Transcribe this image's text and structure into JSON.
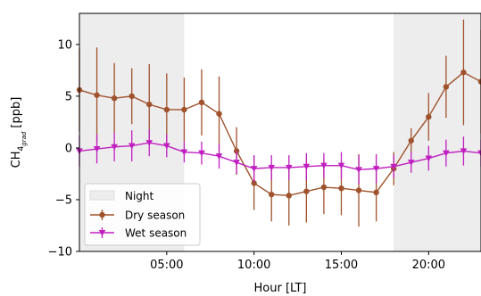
{
  "chart_data": {
    "type": "line",
    "xlabel": "Hour [LT]",
    "ylabel": {
      "main": "CH",
      "sub": "4",
      "subsub": "grad",
      "unit": " [ppb]"
    },
    "xlim": [
      0,
      23
    ],
    "ylim": [
      -10,
      13
    ],
    "x_ticks": [
      {
        "value": 5,
        "label": "05:00"
      },
      {
        "value": 10,
        "label": "10:00"
      },
      {
        "value": 15,
        "label": "15:00"
      },
      {
        "value": 20,
        "label": "20:00"
      }
    ],
    "y_ticks": [
      {
        "value": 10,
        "label": "10"
      },
      {
        "value": 5,
        "label": "5"
      },
      {
        "value": 0,
        "label": "0"
      },
      {
        "value": -5,
        "label": "−5"
      },
      {
        "value": -10,
        "label": "−10"
      }
    ],
    "grid": false,
    "legend_position": "lower-left",
    "night_periods": [
      [
        0,
        6
      ],
      [
        18,
        23
      ]
    ],
    "night_label": "Night",
    "night_color": "#ededed",
    "series": [
      {
        "name": "Dry season",
        "color": "#a0522d",
        "marker": "circle",
        "x": [
          0,
          1,
          2,
          3,
          4,
          5,
          6,
          7,
          8,
          9,
          10,
          11,
          12,
          13,
          14,
          15,
          16,
          17,
          18,
          19,
          20,
          21,
          22,
          23
        ],
        "y": [
          5.6,
          5.1,
          4.8,
          5.0,
          4.2,
          3.7,
          3.7,
          4.4,
          3.3,
          -0.3,
          -3.4,
          -4.5,
          -4.6,
          -4.2,
          -3.8,
          -3.9,
          -4.1,
          -4.3,
          -2.0,
          0.7,
          3.0,
          5.9,
          7.3,
          6.4
        ],
        "err": [
          4.0,
          4.6,
          3.4,
          2.7,
          3.9,
          3.5,
          3.1,
          3.2,
          3.6,
          2.3,
          2.6,
          2.6,
          2.9,
          3.0,
          2.6,
          2.6,
          3.5,
          2.8,
          1.6,
          1.2,
          2.3,
          3.0,
          5.1,
          5.0
        ]
      },
      {
        "name": "Wet season",
        "color": "#c020c0",
        "marker": "triangle-down",
        "x": [
          0,
          1,
          2,
          3,
          4,
          5,
          6,
          7,
          8,
          9,
          10,
          11,
          12,
          13,
          14,
          15,
          16,
          17,
          18,
          19,
          20,
          21,
          22,
          23
        ],
        "y": [
          -0.3,
          -0.1,
          0.1,
          0.2,
          0.5,
          0.2,
          -0.4,
          -0.5,
          -0.8,
          -1.4,
          -2.0,
          -1.9,
          -1.9,
          -1.8,
          -1.7,
          -1.7,
          -2.1,
          -2.0,
          -1.8,
          -1.4,
          -1.0,
          -0.5,
          -0.3,
          -0.5
        ],
        "err": [
          1.5,
          1.4,
          1.4,
          1.5,
          1.3,
          1.1,
          1.0,
          1.1,
          1.2,
          1.1,
          1.3,
          1.2,
          1.2,
          1.3,
          1.2,
          1.3,
          1.4,
          1.4,
          1.1,
          1.0,
          1.2,
          1.3,
          1.4,
          1.3
        ]
      }
    ]
  }
}
